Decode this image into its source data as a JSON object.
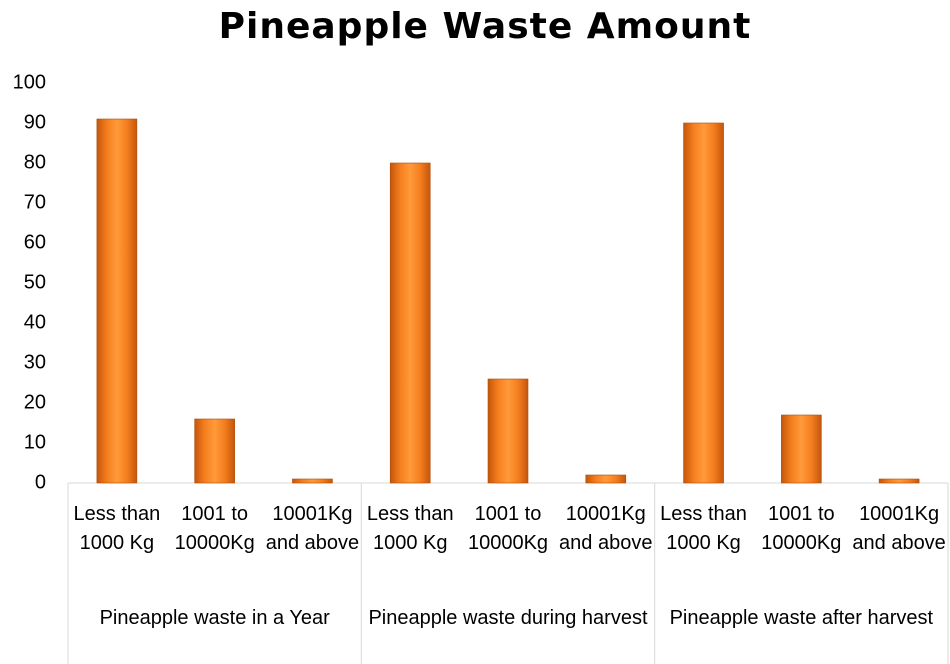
{
  "chart_data": {
    "type": "bar",
    "title": "Pineapple Waste Amount",
    "groups": [
      {
        "name": "Pineapple waste in a Year",
        "categories": [
          "Less than 1000 Kg",
          "1001 to 10000Kg",
          "10001Kg and above"
        ],
        "values": [
          91,
          16,
          1
        ]
      },
      {
        "name": "Pineapple waste during harvest",
        "categories": [
          "Less than 1000 Kg",
          "1001 to 10000Kg",
          "10001Kg and above"
        ],
        "values": [
          80,
          26,
          2
        ]
      },
      {
        "name": "Pineapple waste after harvest",
        "categories": [
          "Less than 1000 Kg",
          "1001 to 10000Kg",
          "10001Kg and above"
        ],
        "values": [
          90,
          17,
          1
        ]
      }
    ],
    "color": "#f58220",
    "ylim": [
      0,
      100
    ],
    "yticks": [
      0,
      10,
      20,
      30,
      40,
      50,
      60,
      70,
      80,
      90,
      100
    ],
    "grid": false
  }
}
